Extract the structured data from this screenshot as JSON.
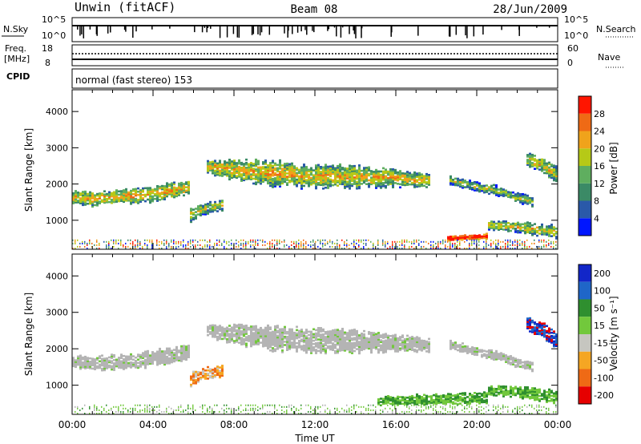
{
  "header": {
    "radar": "Unwin (fitACF)",
    "beam": "Beam 08",
    "date": "28/Jun/2009"
  },
  "aux_panels": {
    "nsky_label": "N.Sky",
    "nsky_ticks": [
      "10^5",
      "10^0"
    ],
    "nsearch_label": "N.Search",
    "nsearch_ticks": [
      "10^5",
      "10^0"
    ],
    "freq_label": "Freq.",
    "freq_unit": "[MHz]",
    "freq_ticks": [
      "18",
      "8"
    ],
    "nave_label": "Nave",
    "nave_ticks": [
      "60",
      "0"
    ],
    "cpid_label": "CPID",
    "cpid_text": "normal (fast stereo) 153"
  },
  "colors": {
    "power_scale": [
      "#0016ff",
      "#2a59a9",
      "#3b8a66",
      "#5fae5f",
      "#b6c917",
      "#f0a31b",
      "#ef6a15",
      "#ff1500"
    ],
    "velocity_scale": [
      "#1226c8",
      "#1f66c8",
      "#2f8f2f",
      "#72c83c",
      "#c6c6c0",
      "#f5a623",
      "#ef6a15",
      "#e60000"
    ],
    "ground_scatter": "#b4b4b4"
  },
  "chart_data": [
    {
      "type": "heatmap",
      "name": "power",
      "xlabel": "",
      "ylabel": "Slant Range [km]",
      "xlim": [
        0,
        24
      ],
      "ylim": [
        200,
        4600
      ],
      "yticks": [
        "1000",
        "2000",
        "3000",
        "4000"
      ],
      "colorbar_label": "Power [dB]",
      "colorbar_ticks": [
        "4",
        "8",
        "12",
        "16",
        "20",
        "24",
        "28"
      ],
      "colorbar_range": [
        0,
        32
      ],
      "bands": [
        {
          "t": [
            0.0,
            1.0,
            2.5,
            3.5,
            4.5,
            5.8
          ],
          "center": [
            1620,
            1580,
            1640,
            1680,
            1760,
            1900
          ],
          "width": [
            300,
            350,
            330,
            360,
            380,
            320
          ],
          "level": 0.35
        },
        {
          "t": [
            5.8,
            6.4,
            7.4
          ],
          "center": [
            1150,
            1300,
            1400
          ],
          "width": [
            350,
            250,
            300
          ],
          "level": 0.25
        },
        {
          "t": [
            6.6,
            8.0,
            10.0,
            12.0,
            14.0,
            16.0,
            17.6
          ],
          "center": [
            2480,
            2380,
            2270,
            2200,
            2200,
            2150,
            2080
          ],
          "width": [
            300,
            500,
            600,
            560,
            540,
            400,
            300
          ],
          "level": 0.33
        },
        {
          "t": [
            18.6,
            20.0,
            21.0,
            22.0,
            22.8
          ],
          "center": [
            2100,
            1900,
            1800,
            1600,
            1500
          ],
          "width": [
            200,
            200,
            220,
            220,
            250
          ],
          "level": 0.2
        },
        {
          "t": [
            22.4,
            23.2,
            24.0
          ],
          "center": [
            2700,
            2500,
            2200
          ],
          "width": [
            300,
            400,
            400
          ],
          "level": 0.3
        },
        {
          "t": [
            18.5,
            19.5,
            20.5
          ],
          "center": [
            480,
            520,
            550
          ],
          "width": [
            120,
            100,
            120
          ],
          "level": 0.75
        },
        {
          "t": [
            20.5,
            22.0,
            24.0
          ],
          "center": [
            850,
            800,
            650
          ],
          "width": [
            200,
            250,
            300
          ],
          "level": 0.3
        }
      ],
      "scatter_rows": [
        {
          "y": [
            200,
            450
          ],
          "density": 0.55
        }
      ]
    },
    {
      "type": "heatmap",
      "name": "velocity",
      "xlabel": "Time UT",
      "ylabel": "Slant Range [km]",
      "xlim": [
        0,
        24
      ],
      "ylim": [
        200,
        4600
      ],
      "xticks": [
        "00:00",
        "04:00",
        "08:00",
        "12:00",
        "16:00",
        "20:00",
        "00:00"
      ],
      "yticks": [
        "1000",
        "2000",
        "3000",
        "4000"
      ],
      "colorbar_label": "Velocity [m s⁻¹]",
      "colorbar_ticks": [
        "200",
        "100",
        "50",
        "15",
        "-15",
        "-50",
        "-100",
        "-200"
      ],
      "bands": [
        {
          "t": [
            0.0,
            1.0,
            2.5,
            3.5,
            4.5,
            5.8
          ],
          "center": [
            1620,
            1580,
            1640,
            1680,
            1760,
            1900
          ],
          "width": [
            300,
            350,
            330,
            360,
            380,
            320
          ],
          "kind": "ground"
        },
        {
          "t": [
            5.8,
            6.4,
            7.4
          ],
          "center": [
            1150,
            1300,
            1400
          ],
          "width": [
            350,
            250,
            300
          ],
          "kind": "negative"
        },
        {
          "t": [
            6.6,
            8.0,
            10.0,
            12.0,
            14.0,
            16.0,
            17.6
          ],
          "center": [
            2480,
            2380,
            2270,
            2200,
            2200,
            2150,
            2080
          ],
          "width": [
            300,
            500,
            600,
            560,
            540,
            400,
            300
          ],
          "kind": "ground"
        },
        {
          "t": [
            18.6,
            20.0,
            21.0,
            22.0,
            22.8
          ],
          "center": [
            2100,
            1900,
            1800,
            1600,
            1500
          ],
          "width": [
            200,
            200,
            220,
            220,
            250
          ],
          "kind": "ground"
        },
        {
          "t": [
            22.4,
            23.2,
            24.0
          ],
          "center": [
            2700,
            2500,
            2200
          ],
          "width": [
            300,
            400,
            400
          ],
          "kind": "positive"
        },
        {
          "t": [
            15.0,
            18.5,
            20.5
          ],
          "center": [
            550,
            620,
            650
          ],
          "width": [
            200,
            260,
            260
          ],
          "kind": "green"
        },
        {
          "t": [
            20.5,
            22.0,
            24.0
          ],
          "center": [
            850,
            800,
            650
          ],
          "width": [
            200,
            250,
            300
          ],
          "kind": "green"
        }
      ],
      "scatter_rows": [
        {
          "y": [
            200,
            450
          ],
          "density": 0.35
        }
      ]
    }
  ]
}
